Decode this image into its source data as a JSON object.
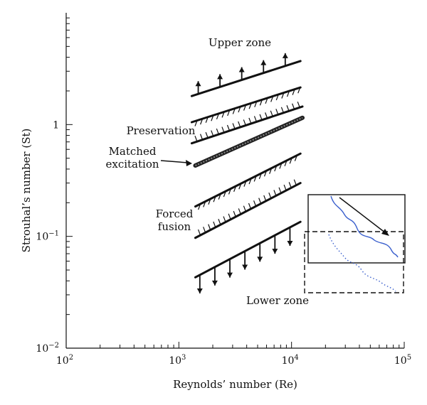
{
  "chart_data": {
    "type": "line",
    "xlabel": "Reynolds’ number (Re)",
    "ylabel": "Strouhal’s number (St)",
    "x_scale": "log",
    "y_scale": "log",
    "xlim": [
      100,
      100000
    ],
    "ylim": [
      0.01,
      10
    ],
    "x_ticks": [
      {
        "value": 100,
        "base": "10",
        "exp": "2"
      },
      {
        "value": 1000,
        "base": "10",
        "exp": "3"
      },
      {
        "value": 10000,
        "base": "10",
        "exp": "4"
      },
      {
        "value": 100000,
        "base": "10",
        "exp": "5"
      }
    ],
    "y_ticks": [
      {
        "value": 0.01,
        "base": "10",
        "exp": "−2"
      },
      {
        "value": 0.1,
        "base": "10",
        "exp": "−1"
      },
      {
        "value": 1,
        "base": "1",
        "exp": ""
      }
    ],
    "grid": false,
    "series": [
      {
        "key": "upper",
        "x": [
          1300,
          12000
        ],
        "y": [
          1.8,
          3.7
        ],
        "style": "arrows-up"
      },
      {
        "key": "band1",
        "x": [
          1300,
          12000
        ],
        "y": [
          1.05,
          2.15
        ],
        "style": "hatch-down"
      },
      {
        "key": "preservation",
        "x": [
          1300,
          12500
        ],
        "y": [
          0.68,
          1.45
        ],
        "style": "hatch-up"
      },
      {
        "key": "matched",
        "x": [
          1400,
          12500
        ],
        "y": [
          0.43,
          1.15
        ],
        "style": "thick"
      },
      {
        "key": "band2",
        "x": [
          1400,
          12000
        ],
        "y": [
          0.185,
          0.55
        ],
        "style": "hatch-down"
      },
      {
        "key": "forced",
        "x": [
          1400,
          12000
        ],
        "y": [
          0.097,
          0.3
        ],
        "style": "hatch-up"
      },
      {
        "key": "lower",
        "x": [
          1400,
          12000
        ],
        "y": [
          0.043,
          0.135
        ],
        "style": "arrows-down"
      }
    ],
    "annotations": [
      {
        "key": "upper_zone",
        "lines": [
          "Upper zone"
        ]
      },
      {
        "key": "preservation",
        "lines": [
          "Preservation"
        ]
      },
      {
        "key": "matched",
        "lines": [
          "Matched",
          "excitation"
        ]
      },
      {
        "key": "forced",
        "lines": [
          "Forced",
          "fusion"
        ]
      },
      {
        "key": "lower_zone",
        "lines": [
          "Lower zone"
        ]
      }
    ],
    "inset": {
      "solid_curve_color": "#3a5fcd",
      "dotted_curve_color": "#3a5fcd",
      "solid_box": "solid",
      "dashed_box": "dashed"
    }
  }
}
